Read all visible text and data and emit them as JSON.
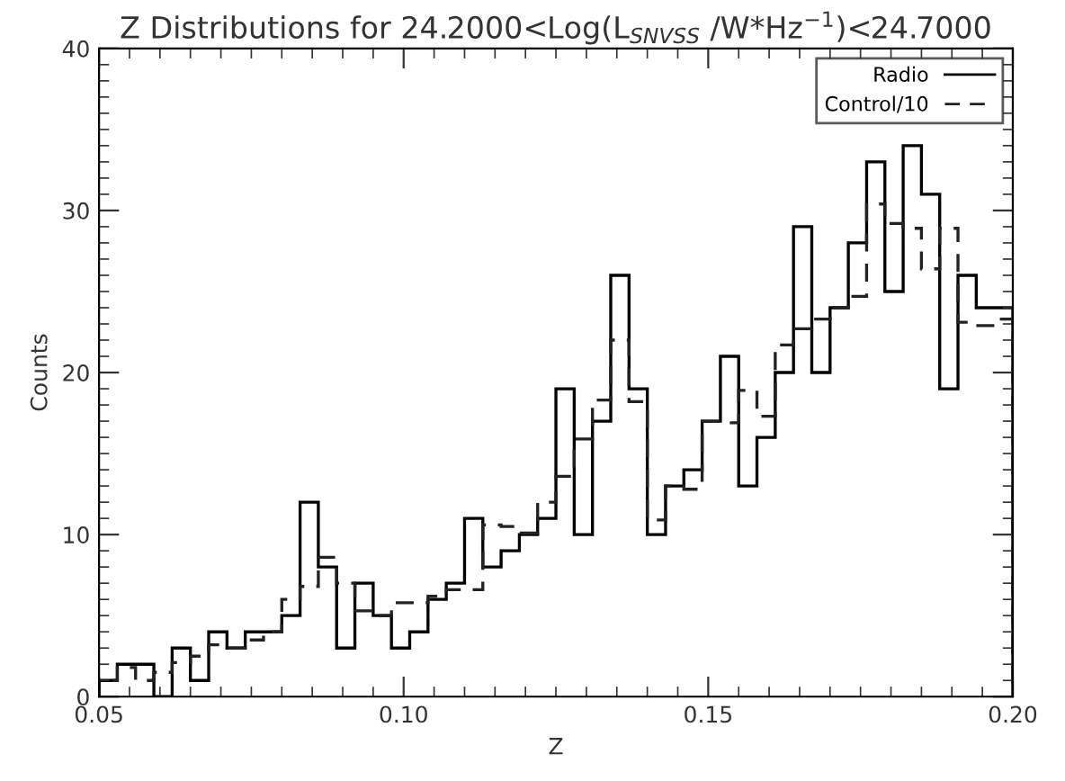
{
  "chart_data": {
    "type": "histogram",
    "title": "Z Distributions for 24.2000<Log(L$_{SNVSS}$ /W*Hz$^{−1}$)<24.7000",
    "xlabel": "Z",
    "ylabel": "Counts",
    "bins": [
      0.05,
      0.053,
      0.056,
      0.059,
      0.062,
      0.065,
      0.068,
      0.071,
      0.074,
      0.077,
      0.08,
      0.083,
      0.086,
      0.089,
      0.092,
      0.095,
      0.098,
      0.101,
      0.104,
      0.107,
      0.11,
      0.113,
      0.116,
      0.119,
      0.122,
      0.125,
      0.128,
      0.131,
      0.134,
      0.137,
      0.14,
      0.143,
      0.146,
      0.149,
      0.152,
      0.155,
      0.158,
      0.161,
      0.164,
      0.167,
      0.17,
      0.173,
      0.176,
      0.179,
      0.182,
      0.185,
      0.188,
      0.191,
      0.194,
      0.197,
      0.2
    ],
    "series": [
      {
        "name": "Radio",
        "color": "#000000",
        "line_style": "solid",
        "values": [
          1,
          2,
          2,
          0,
          3,
          1,
          4,
          3,
          4,
          4,
          5,
          12,
          8,
          3,
          7,
          5,
          3,
          4,
          6,
          7,
          11,
          8,
          9,
          10,
          11,
          19,
          10,
          17,
          26,
          19,
          10,
          13,
          14,
          17,
          21,
          13,
          16,
          20,
          29,
          20,
          24,
          28,
          33,
          25,
          34,
          31,
          19,
          26,
          24,
          24
        ]
      },
      {
        "name": "Control/10",
        "color": "#222222",
        "line_style": "dashed",
        "values": [
          1.0,
          1.8,
          1.0,
          1.5,
          2.1,
          2.5,
          3.2,
          3.0,
          3.5,
          4.0,
          6.0,
          6.8,
          8.6,
          7.0,
          5.3,
          5.0,
          5.8,
          5.8,
          6.2,
          6.6,
          6.6,
          10.6,
          10.5,
          10.1,
          12.0,
          13.6,
          15.9,
          18.3,
          22.0,
          18.2,
          10.9,
          13.0,
          12.8,
          17.0,
          16.9,
          18.9,
          17.3,
          21.7,
          22.7,
          23.3,
          24.0,
          24.7,
          30.4,
          29.2,
          28.9,
          26.4,
          28.9,
          23.1,
          22.9,
          23.3
        ]
      }
    ],
    "xlim": [
      0.05,
      0.2
    ],
    "xticks": [
      {
        "value": 0.05,
        "label": "0.05"
      },
      {
        "value": 0.1,
        "label": "0.10"
      },
      {
        "value": 0.15,
        "label": "0.15"
      },
      {
        "value": 0.2,
        "label": "0.20"
      }
    ],
    "ylim": [
      0,
      40
    ],
    "yticks": [
      0,
      10,
      20,
      30,
      40
    ],
    "grid": false,
    "legend": "top right"
  }
}
